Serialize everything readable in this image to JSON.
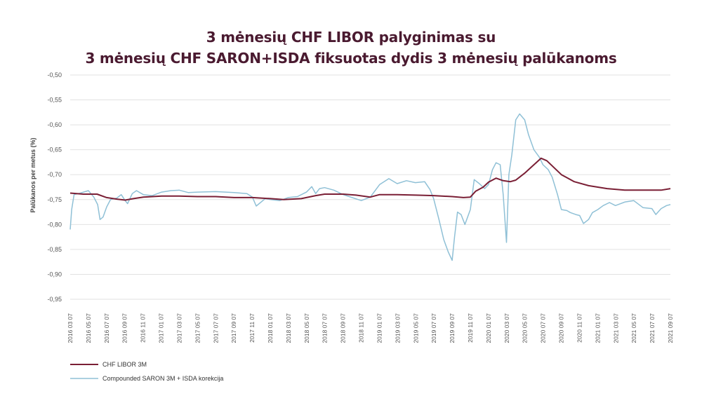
{
  "chart_data": {
    "type": "line",
    "title": "3 mėnesių CHF LIBOR palyginimas su",
    "subtitle": "3 mėnesių CHF SARON+ISDA fiksuotas dydis 3 mėnesių palūkanoms",
    "xlabel": "",
    "ylabel": "Palūkanos per metus (%)",
    "ylim": [
      -0.95,
      -0.5
    ],
    "yticks": [
      -0.5,
      -0.55,
      -0.6,
      -0.65,
      -0.7,
      -0.75,
      -0.8,
      -0.85,
      -0.9,
      -0.95
    ],
    "ytick_labels": [
      "-0,50",
      "-0,55",
      "-0,60",
      "-0,65",
      "-0,70",
      "-0,75",
      "-0,80",
      "-0,85",
      "-0,90",
      "-0,95"
    ],
    "xlim": [
      "2016-03-07",
      "2021-09-07"
    ],
    "xtick_labels": [
      "2016 03 07",
      "2016 05 07",
      "2016 07 07",
      "2016 09 07",
      "2016 11 07",
      "2017 01 07",
      "2017 03 07",
      "2017 05 07",
      "2017 07 07",
      "2017 09 07",
      "2017 11 07",
      "2018 01 07",
      "2018 03 07",
      "2018 05 07",
      "2018 07 07",
      "2018 09 07",
      "2018 11 07",
      "2019 01 07",
      "2019 03 07",
      "2019 05 07",
      "2019 07 07",
      "2019 09 07",
      "2019 11 07",
      "2020 01 07",
      "2020 03 07",
      "2020 05 07",
      "2020 07 07",
      "2020 09 07",
      "2020 11 07",
      "2021 01 07",
      "2021 03 07",
      "2021 05 07",
      "2021 07 07",
      "2021 09 07"
    ],
    "grid": "horizontal",
    "legend_position": "bottom-left",
    "series": [
      {
        "name": "CHF LIBOR 3M",
        "color": "#7a1f35",
        "points": [
          [
            "2016-03-07",
            -0.737
          ],
          [
            "2016-04-20",
            -0.739
          ],
          [
            "2016-06-05",
            -0.739
          ],
          [
            "2016-07-07",
            -0.746
          ],
          [
            "2016-08-10",
            -0.749
          ],
          [
            "2016-09-07",
            -0.751
          ],
          [
            "2016-10-05",
            -0.748
          ],
          [
            "2016-11-07",
            -0.745
          ],
          [
            "2017-01-07",
            -0.743
          ],
          [
            "2017-03-07",
            -0.743
          ],
          [
            "2017-05-07",
            -0.744
          ],
          [
            "2017-07-07",
            -0.744
          ],
          [
            "2017-09-07",
            -0.746
          ],
          [
            "2017-11-07",
            -0.746
          ],
          [
            "2018-01-07",
            -0.748
          ],
          [
            "2018-02-20",
            -0.75
          ],
          [
            "2018-04-20",
            -0.748
          ],
          [
            "2018-06-07",
            -0.742
          ],
          [
            "2018-07-07",
            -0.739
          ],
          [
            "2018-09-07",
            -0.739
          ],
          [
            "2018-10-20",
            -0.741
          ],
          [
            "2018-12-07",
            -0.745
          ],
          [
            "2019-01-07",
            -0.74
          ],
          [
            "2019-03-07",
            -0.74
          ],
          [
            "2019-05-07",
            -0.741
          ],
          [
            "2019-07-07",
            -0.742
          ],
          [
            "2019-09-07",
            -0.744
          ],
          [
            "2019-10-15",
            -0.746
          ],
          [
            "2019-11-07",
            -0.745
          ],
          [
            "2019-11-25",
            -0.733
          ],
          [
            "2019-12-20",
            -0.725
          ],
          [
            "2020-01-07",
            -0.715
          ],
          [
            "2020-02-01",
            -0.707
          ],
          [
            "2020-02-25",
            -0.712
          ],
          [
            "2020-03-20",
            -0.714
          ],
          [
            "2020-04-07",
            -0.711
          ],
          [
            "2020-05-07",
            -0.697
          ],
          [
            "2020-06-07",
            -0.68
          ],
          [
            "2020-07-01",
            -0.667
          ],
          [
            "2020-07-20",
            -0.672
          ],
          [
            "2020-09-07",
            -0.7
          ],
          [
            "2020-10-20",
            -0.714
          ],
          [
            "2020-12-07",
            -0.722
          ],
          [
            "2021-02-07",
            -0.728
          ],
          [
            "2021-04-07",
            -0.731
          ],
          [
            "2021-06-07",
            -0.731
          ],
          [
            "2021-08-07",
            -0.731
          ],
          [
            "2021-09-07",
            -0.728
          ]
        ]
      },
      {
        "name": "Compounded SARON 3M + ISDA korekcija",
        "color": "#8fc0d6",
        "points": [
          [
            "2016-03-07",
            -0.81
          ],
          [
            "2016-03-12",
            -0.77
          ],
          [
            "2016-03-20",
            -0.74
          ],
          [
            "2016-04-10",
            -0.737
          ],
          [
            "2016-05-07",
            -0.732
          ],
          [
            "2016-05-25",
            -0.745
          ],
          [
            "2016-06-07",
            -0.76
          ],
          [
            "2016-06-15",
            -0.79
          ],
          [
            "2016-06-25",
            -0.785
          ],
          [
            "2016-07-07",
            -0.765
          ],
          [
            "2016-07-20",
            -0.75
          ],
          [
            "2016-08-10",
            -0.747
          ],
          [
            "2016-08-25",
            -0.74
          ],
          [
            "2016-09-07",
            -0.752
          ],
          [
            "2016-09-15",
            -0.758
          ],
          [
            "2016-10-01",
            -0.738
          ],
          [
            "2016-10-15",
            -0.732
          ],
          [
            "2016-11-07",
            -0.74
          ],
          [
            "2016-12-07",
            -0.742
          ],
          [
            "2017-01-07",
            -0.735
          ],
          [
            "2017-02-07",
            -0.732
          ],
          [
            "2017-03-07",
            -0.731
          ],
          [
            "2017-04-07",
            -0.736
          ],
          [
            "2017-05-07",
            -0.735
          ],
          [
            "2017-07-07",
            -0.734
          ],
          [
            "2017-09-07",
            -0.736
          ],
          [
            "2017-10-20",
            -0.738
          ],
          [
            "2017-11-07",
            -0.745
          ],
          [
            "2017-11-20",
            -0.763
          ],
          [
            "2017-12-20",
            -0.748
          ],
          [
            "2018-01-07",
            -0.75
          ],
          [
            "2018-02-07",
            -0.752
          ],
          [
            "2018-03-07",
            -0.746
          ],
          [
            "2018-04-07",
            -0.744
          ],
          [
            "2018-05-07",
            -0.735
          ],
          [
            "2018-05-25",
            -0.724
          ],
          [
            "2018-06-07",
            -0.738
          ],
          [
            "2018-06-20",
            -0.728
          ],
          [
            "2018-07-07",
            -0.726
          ],
          [
            "2018-08-07",
            -0.731
          ],
          [
            "2018-09-07",
            -0.74
          ],
          [
            "2018-10-07",
            -0.746
          ],
          [
            "2018-11-07",
            -0.752
          ],
          [
            "2018-12-07",
            -0.745
          ],
          [
            "2019-01-07",
            -0.72
          ],
          [
            "2019-02-07",
            -0.708
          ],
          [
            "2019-03-07",
            -0.718
          ],
          [
            "2019-04-07",
            -0.712
          ],
          [
            "2019-05-07",
            -0.716
          ],
          [
            "2019-06-07",
            -0.714
          ],
          [
            "2019-06-25",
            -0.73
          ],
          [
            "2019-07-07",
            -0.748
          ],
          [
            "2019-07-25",
            -0.79
          ],
          [
            "2019-08-10",
            -0.83
          ],
          [
            "2019-08-25",
            -0.855
          ],
          [
            "2019-09-07",
            -0.872
          ],
          [
            "2019-09-15",
            -0.825
          ],
          [
            "2019-09-25",
            -0.775
          ],
          [
            "2019-10-07",
            -0.78
          ],
          [
            "2019-10-20",
            -0.8
          ],
          [
            "2019-11-07",
            -0.77
          ],
          [
            "2019-11-20",
            -0.71
          ],
          [
            "2019-12-07",
            -0.718
          ],
          [
            "2019-12-25",
            -0.728
          ],
          [
            "2020-01-07",
            -0.72
          ],
          [
            "2020-01-20",
            -0.69
          ],
          [
            "2020-02-01",
            -0.676
          ],
          [
            "2020-02-15",
            -0.68
          ],
          [
            "2020-02-25",
            -0.74
          ],
          [
            "2020-03-07",
            -0.836
          ],
          [
            "2020-03-15",
            -0.7
          ],
          [
            "2020-03-25",
            -0.66
          ],
          [
            "2020-04-07",
            -0.59
          ],
          [
            "2020-04-20",
            -0.578
          ],
          [
            "2020-05-07",
            -0.59
          ],
          [
            "2020-05-20",
            -0.62
          ],
          [
            "2020-06-07",
            -0.65
          ],
          [
            "2020-06-25",
            -0.665
          ],
          [
            "2020-07-07",
            -0.68
          ],
          [
            "2020-07-25",
            -0.69
          ],
          [
            "2020-08-07",
            -0.705
          ],
          [
            "2020-08-25",
            -0.74
          ],
          [
            "2020-09-07",
            -0.77
          ],
          [
            "2020-09-25",
            -0.772
          ],
          [
            "2020-10-07",
            -0.776
          ],
          [
            "2020-10-25",
            -0.78
          ],
          [
            "2020-11-07",
            -0.782
          ],
          [
            "2020-11-20",
            -0.798
          ],
          [
            "2020-12-07",
            -0.79
          ],
          [
            "2020-12-20",
            -0.776
          ],
          [
            "2021-01-07",
            -0.77
          ],
          [
            "2021-01-25",
            -0.762
          ],
          [
            "2021-02-15",
            -0.756
          ],
          [
            "2021-03-07",
            -0.762
          ],
          [
            "2021-04-07",
            -0.755
          ],
          [
            "2021-05-07",
            -0.752
          ],
          [
            "2021-06-07",
            -0.766
          ],
          [
            "2021-07-07",
            -0.768
          ],
          [
            "2021-07-20",
            -0.78
          ],
          [
            "2021-08-07",
            -0.768
          ],
          [
            "2021-08-25",
            -0.762
          ],
          [
            "2021-09-07",
            -0.76
          ]
        ]
      }
    ]
  }
}
